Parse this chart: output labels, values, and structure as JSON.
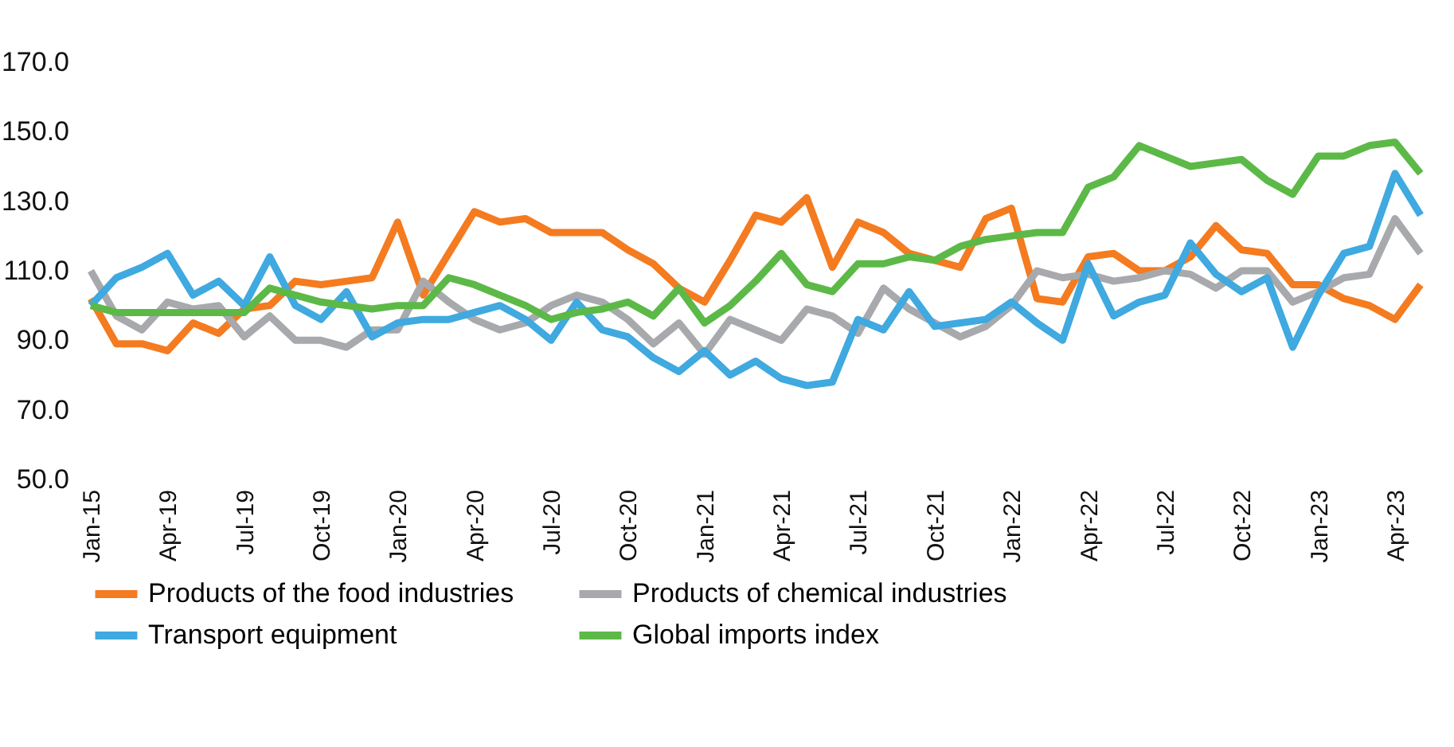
{
  "chart_data": {
    "type": "line",
    "categories": [
      "Jan-15",
      null,
      null,
      "Apr-19",
      null,
      null,
      "Jul-19",
      null,
      null,
      "Oct-19",
      null,
      null,
      "Jan-20",
      null,
      null,
      "Apr-20",
      null,
      null,
      "Jul-20",
      null,
      null,
      "Oct-20",
      null,
      null,
      "Jan-21",
      null,
      null,
      "Apr-21",
      null,
      null,
      "Jul-21",
      null,
      null,
      "Oct-21",
      null,
      null,
      "Jan-22",
      null,
      null,
      "Apr-22",
      null,
      null,
      "Jul-22",
      null,
      null,
      "Oct-22",
      null,
      null,
      "Jan-23",
      null,
      null,
      "Apr-23",
      null
    ],
    "series": [
      {
        "name": "Products of the food industries",
        "color": "#f47b20",
        "values": [
          102,
          89,
          89,
          87,
          95,
          92,
          99,
          100,
          107,
          106,
          107,
          108,
          124,
          103,
          115,
          127,
          124,
          125,
          121,
          121,
          121,
          116,
          112,
          105,
          101,
          113,
          126,
          124,
          131,
          111,
          124,
          121,
          115,
          113,
          111,
          125,
          128,
          102,
          101,
          114,
          115,
          110,
          110,
          114,
          123,
          116,
          115,
          106,
          106,
          102,
          100,
          96,
          106
        ]
      },
      {
        "name": "Products of chemical industries",
        "color": "#a7a9ac",
        "values": [
          110,
          97,
          93,
          101,
          99,
          100,
          91,
          97,
          90,
          90,
          88,
          93,
          93,
          107,
          101,
          96,
          93,
          95,
          100,
          103,
          101,
          96,
          89,
          95,
          86,
          96,
          93,
          90,
          99,
          97,
          92,
          105,
          99,
          95,
          91,
          94,
          100,
          110,
          108,
          109,
          107,
          108,
          110,
          109,
          105,
          110,
          110,
          101,
          104,
          108,
          109,
          125,
          115
        ]
      },
      {
        "name": "Transport equipment",
        "color": "#3fa9e0",
        "values": [
          100,
          108,
          111,
          115,
          103,
          107,
          100,
          114,
          100,
          96,
          104,
          91,
          95,
          96,
          96,
          98,
          100,
          96,
          90,
          101,
          93,
          91,
          85,
          81,
          87,
          80,
          84,
          79,
          77,
          78,
          96,
          93,
          104,
          94,
          95,
          96,
          101,
          95,
          90,
          112,
          97,
          101,
          103,
          118,
          109,
          104,
          108,
          88,
          103,
          115,
          117,
          138,
          126
        ]
      },
      {
        "name": "Global imports index",
        "color": "#5cb947",
        "values": [
          100,
          98,
          98,
          98,
          98,
          98,
          98,
          105,
          103,
          101,
          100,
          99,
          100,
          100,
          108,
          106,
          103,
          100,
          96,
          98,
          99,
          101,
          97,
          105,
          95,
          100,
          107,
          115,
          106,
          104,
          112,
          112,
          114,
          113,
          117,
          119,
          120,
          121,
          121,
          134,
          137,
          146,
          143,
          140,
          141,
          142,
          136,
          132,
          143,
          143,
          146,
          147,
          138
        ]
      }
    ],
    "ylim": [
      50,
      170
    ],
    "yticks": [
      {
        "value": 50,
        "label": "50.0"
      },
      {
        "value": 70,
        "label": "70.0"
      },
      {
        "value": 90,
        "label": "90.0"
      },
      {
        "value": 110,
        "label": "110.0"
      },
      {
        "value": 130,
        "label": "130.0"
      },
      {
        "value": 150,
        "label": "150.0"
      },
      {
        "value": 170,
        "label": "170.0"
      }
    ],
    "grid": false,
    "legend": "bottom",
    "marker": "none",
    "line_style": "solid"
  }
}
